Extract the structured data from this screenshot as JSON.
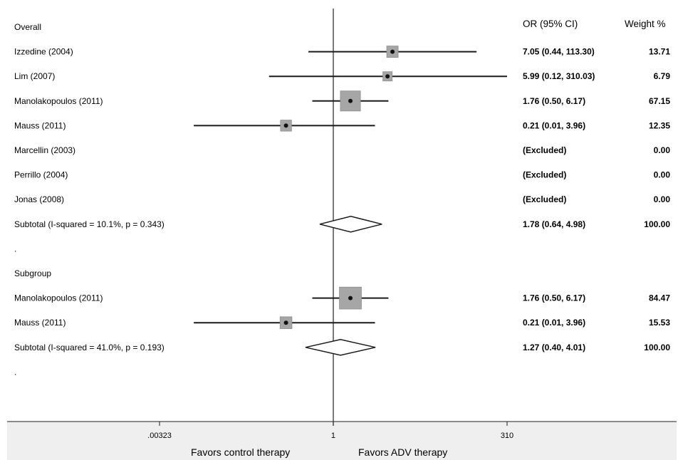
{
  "chart_data": {
    "type": "forest",
    "headers": {
      "estimate": "OR (95% CI)",
      "weight": "Weight %"
    },
    "x_scale": "log",
    "x_ticks": [
      {
        "value": 0.00323,
        "label": ".00323"
      },
      {
        "value": 1,
        "label": "1"
      },
      {
        "value": 310,
        "label": "310"
      }
    ],
    "axis_captions": {
      "left": "Favors control therapy",
      "right": "Favors ADV therapy"
    },
    "rows": [
      {
        "kind": "group",
        "label": "Overall"
      },
      {
        "kind": "study",
        "label": "Izzedine (2004)",
        "or": 7.05,
        "lo": 0.44,
        "hi": 113.3,
        "estimate_text": "7.05 (0.44, 113.30)",
        "weight": 13.71,
        "weight_text": "13.71"
      },
      {
        "kind": "study",
        "label": "Lim (2007)",
        "or": 5.99,
        "lo": 0.12,
        "hi": 310.03,
        "estimate_text": "5.99 (0.12, 310.03)",
        "weight": 6.79,
        "weight_text": "6.79"
      },
      {
        "kind": "study",
        "label": "Manolakopoulos (2011)",
        "or": 1.76,
        "lo": 0.5,
        "hi": 6.17,
        "estimate_text": "1.76 (0.50, 6.17)",
        "weight": 67.15,
        "weight_text": "67.15"
      },
      {
        "kind": "study",
        "label": "Mauss (2011)",
        "or": 0.21,
        "lo": 0.01,
        "hi": 3.96,
        "estimate_text": "0.21 (0.01, 3.96)",
        "weight": 12.35,
        "weight_text": "12.35"
      },
      {
        "kind": "excluded",
        "label": "Marcellin (2003)",
        "estimate_text": "(Excluded)",
        "weight_text": "0.00"
      },
      {
        "kind": "excluded",
        "label": "Perrillo (2004)",
        "estimate_text": "(Excluded)",
        "weight_text": "0.00"
      },
      {
        "kind": "excluded",
        "label": "Jonas (2008)",
        "estimate_text": "(Excluded)",
        "weight_text": "0.00"
      },
      {
        "kind": "subtotal",
        "label": "Subtotal  (I-squared = 10.1%, p = 0.343)",
        "or": 1.78,
        "lo": 0.64,
        "hi": 4.98,
        "estimate_text": "1.78 (0.64, 4.98)",
        "weight_text": "100.00"
      },
      {
        "kind": "spacer",
        "label": "."
      },
      {
        "kind": "group",
        "label": "Subgroup"
      },
      {
        "kind": "study",
        "label": "Manolakopoulos (2011)",
        "or": 1.76,
        "lo": 0.5,
        "hi": 6.17,
        "estimate_text": "1.76 (0.50, 6.17)",
        "weight": 84.47,
        "weight_text": "84.47"
      },
      {
        "kind": "study",
        "label": "Mauss (2011)",
        "or": 0.21,
        "lo": 0.01,
        "hi": 3.96,
        "estimate_text": "0.21 (0.01, 3.96)",
        "weight": 15.53,
        "weight_text": "15.53"
      },
      {
        "kind": "subtotal",
        "label": "Subtotal  (I-squared = 41.0%, p = 0.193)",
        "or": 1.27,
        "lo": 0.4,
        "hi": 4.01,
        "estimate_text": "1.27 (0.40, 4.01)",
        "weight_text": "100.00"
      },
      {
        "kind": "spacer",
        "label": "."
      }
    ]
  }
}
